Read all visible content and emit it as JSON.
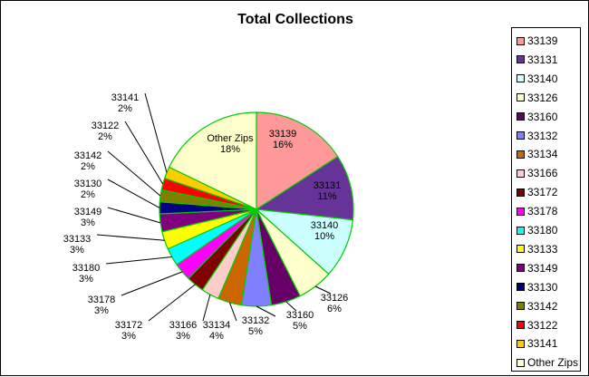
{
  "chart_data": {
    "type": "pie",
    "title": "Total Collections",
    "legend_position": "right",
    "slices": [
      {
        "label": "33139",
        "pct_label": "16%",
        "value": 16,
        "color": "#FF9999"
      },
      {
        "label": "33131",
        "pct_label": "11%",
        "value": 11,
        "color": "#663399"
      },
      {
        "label": "33140",
        "pct_label": "10%",
        "value": 10,
        "color": "#CCFFFF"
      },
      {
        "label": "33126",
        "pct_label": "6%",
        "value": 6,
        "color": "#FFFFCC"
      },
      {
        "label": "33160",
        "pct_label": "5%",
        "value": 5,
        "color": "#660066"
      },
      {
        "label": "33132",
        "pct_label": "5%",
        "value": 5,
        "color": "#8080FF"
      },
      {
        "label": "33134",
        "pct_label": "4%",
        "value": 4,
        "color": "#CC6600"
      },
      {
        "label": "33166",
        "pct_label": "3%",
        "value": 3,
        "color": "#FFCCCC"
      },
      {
        "label": "33172",
        "pct_label": "3%",
        "value": 3,
        "color": "#800000"
      },
      {
        "label": "33178",
        "pct_label": "3%",
        "value": 3,
        "color": "#FF00FF"
      },
      {
        "label": "33180",
        "pct_label": "3%",
        "value": 3,
        "color": "#00FFFF"
      },
      {
        "label": "33133",
        "pct_label": "3%",
        "value": 3,
        "color": "#FFFF00"
      },
      {
        "label": "33149",
        "pct_label": "3%",
        "value": 3,
        "color": "#800080"
      },
      {
        "label": "33130",
        "pct_label": "2%",
        "value": 2,
        "color": "#000080"
      },
      {
        "label": "33142",
        "pct_label": "2%",
        "value": 2,
        "color": "#808000"
      },
      {
        "label": "33122",
        "pct_label": "2%",
        "value": 2,
        "color": "#FF0000"
      },
      {
        "label": "33141",
        "pct_label": "2%",
        "value": 2,
        "color": "#FFCC00"
      },
      {
        "label": "Other Zips",
        "pct_label": "18%",
        "value": 18,
        "color": "#FFFFCC"
      }
    ]
  },
  "slice_border_color": "#00CC00"
}
